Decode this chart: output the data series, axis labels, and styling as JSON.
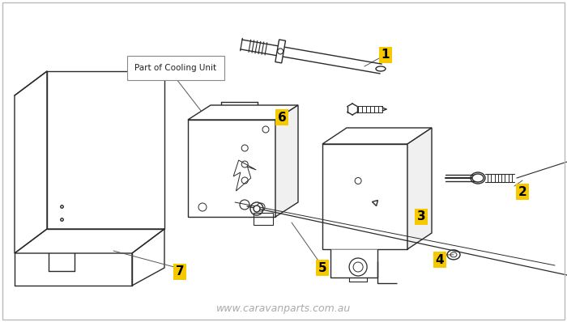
{
  "background_color": "#ffffff",
  "border_color": "#bbbbbb",
  "watermark": "www.caravanparts.com.au",
  "watermark_color": "#aaaaaa",
  "label_bg": "#f5c800",
  "label_text_color": "#000000",
  "annotation_box_bg": "#ffffff",
  "annotation_box_border": "#888888",
  "annotation_text": "Part of Cooling Unit",
  "line_color": "#2a2a2a",
  "fig_width": 7.0,
  "fig_height": 3.98,
  "dpi": 100
}
